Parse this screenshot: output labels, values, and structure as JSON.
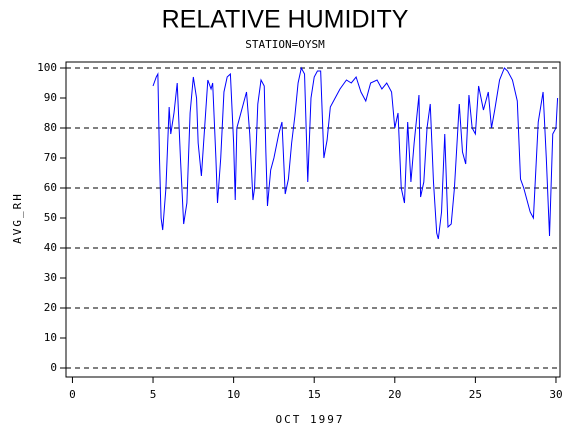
{
  "chart_data": {
    "type": "line",
    "title": "RELATIVE HUMIDITY",
    "subtitle": "STATION=OYSM",
    "x_label": "OCT 1997",
    "y_label": "AVG_RH",
    "x": [
      5.0,
      5.2,
      5.3,
      5.4,
      5.5,
      5.6,
      5.8,
      6.0,
      6.1,
      6.3,
      6.5,
      6.7,
      6.9,
      7.1,
      7.3,
      7.5,
      7.7,
      7.8,
      8.0,
      8.2,
      8.4,
      8.6,
      8.7,
      8.9,
      9.0,
      9.2,
      9.4,
      9.6,
      9.8,
      10.0,
      10.1,
      10.2,
      10.4,
      10.6,
      10.8,
      11.0,
      11.2,
      11.3,
      11.5,
      11.7,
      11.9,
      12.0,
      12.1,
      12.3,
      12.5,
      12.8,
      13.0,
      13.2,
      13.4,
      13.6,
      13.8,
      14.0,
      14.2,
      14.4,
      14.6,
      14.8,
      15.0,
      15.2,
      15.4,
      15.6,
      15.8,
      16.0,
      16.3,
      16.6,
      17.0,
      17.3,
      17.6,
      17.9,
      18.2,
      18.5,
      18.9,
      19.2,
      19.5,
      19.8,
      20.0,
      20.2,
      20.4,
      20.6,
      20.8,
      21.0,
      21.2,
      21.5,
      21.6,
      21.8,
      22.0,
      22.2,
      22.4,
      22.6,
      22.7,
      22.9,
      23.1,
      23.3,
      23.5,
      23.7,
      24.0,
      24.2,
      24.4,
      24.6,
      24.8,
      25.0,
      25.2,
      25.5,
      25.8,
      26.0,
      26.2,
      26.5,
      26.8,
      27.0,
      27.3,
      27.6,
      27.8,
      28.0,
      28.2,
      28.4,
      28.6,
      28.9,
      29.2,
      29.4,
      29.6,
      29.8,
      30.0,
      30.1
    ],
    "series": [
      {
        "name": "AVG_RH",
        "color": "#0000ff",
        "values": [
          94,
          97,
          98,
          70,
          50,
          46,
          60,
          87,
          78,
          85,
          95,
          70,
          48,
          55,
          85,
          97,
          90,
          75,
          64,
          80,
          96,
          93,
          95,
          70,
          55,
          70,
          92,
          97,
          98,
          75,
          56,
          80,
          84,
          88,
          92,
          78,
          56,
          60,
          88,
          96,
          94,
          72,
          54,
          66,
          70,
          78,
          82,
          58,
          63,
          75,
          84,
          95,
          100,
          98,
          62,
          90,
          97,
          99,
          99,
          70,
          76,
          87,
          90,
          93,
          96,
          95,
          97,
          92,
          89,
          95,
          96,
          93,
          95,
          92,
          80,
          85,
          60,
          55,
          82,
          62,
          75,
          91,
          57,
          62,
          80,
          88,
          62,
          45,
          43,
          52,
          78,
          47,
          48,
          60,
          88,
          72,
          68,
          91,
          80,
          78,
          94,
          86,
          92,
          80,
          86,
          96,
          100,
          99,
          96,
          89,
          63,
          60,
          56,
          52,
          50,
          82,
          92,
          70,
          44,
          78,
          80,
          90
        ]
      }
    ],
    "xlim": [
      -0.4,
      30.25
    ],
    "ylim": [
      -3,
      102
    ],
    "xticks": [
      0,
      5,
      10,
      15,
      20,
      25,
      30
    ],
    "yticks": [
      0,
      10,
      20,
      30,
      40,
      50,
      60,
      70,
      80,
      90,
      100
    ],
    "gridlines": [
      0,
      20,
      40,
      60,
      80,
      100
    ]
  }
}
